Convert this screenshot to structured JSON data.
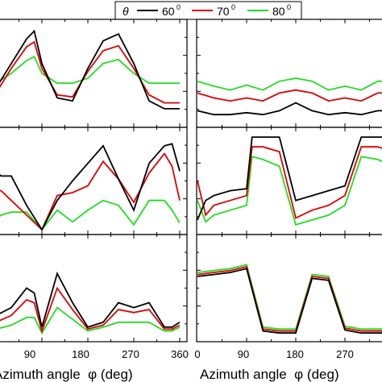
{
  "legend": {
    "symbol": "θ",
    "items": [
      {
        "label": "60",
        "sup": "0",
        "color": "#000000"
      },
      {
        "label": "70",
        "sup": "0",
        "color": "#dd0000"
      },
      {
        "label": "80",
        "sup": "0",
        "color": "#22dd22"
      }
    ]
  },
  "chart_data": [
    {
      "type": "line",
      "panel": "left-top",
      "xlim": [
        0,
        370
      ],
      "ylim": [
        0,
        1
      ],
      "series": [
        {
          "name": "60",
          "color": "#000000",
          "x": [
            0,
            30,
            60,
            75,
            90,
            120,
            150,
            180,
            210,
            240,
            270,
            300,
            330,
            360
          ],
          "y": [
            0.35,
            0.6,
            0.85,
            0.93,
            0.6,
            0.25,
            0.22,
            0.55,
            0.83,
            0.9,
            0.6,
            0.22,
            0.14,
            0.14
          ]
        },
        {
          "name": "70",
          "color": "#dd0000",
          "x": [
            0,
            30,
            60,
            75,
            90,
            120,
            150,
            180,
            210,
            240,
            270,
            300,
            330,
            360
          ],
          "y": [
            0.3,
            0.55,
            0.77,
            0.82,
            0.55,
            0.28,
            0.26,
            0.52,
            0.73,
            0.78,
            0.55,
            0.28,
            0.2,
            0.2
          ]
        },
        {
          "name": "80",
          "color": "#22dd22",
          "x": [
            0,
            30,
            60,
            75,
            90,
            120,
            150,
            180,
            210,
            240,
            270,
            300,
            330,
            360
          ],
          "y": [
            0.4,
            0.5,
            0.63,
            0.67,
            0.5,
            0.4,
            0.4,
            0.45,
            0.6,
            0.64,
            0.5,
            0.4,
            0.4,
            0.4
          ]
        }
      ]
    },
    {
      "type": "line",
      "panel": "right-top",
      "xlim": [
        0,
        370
      ],
      "ylim": [
        0,
        1
      ],
      "series": [
        {
          "name": "60",
          "color": "#000000",
          "x": [
            0,
            30,
            60,
            90,
            120,
            150,
            180,
            210,
            240,
            270,
            300,
            330,
            360
          ],
          "y": [
            0.12,
            0.08,
            0.08,
            0.1,
            0.08,
            0.12,
            0.2,
            0.12,
            0.08,
            0.1,
            0.08,
            0.12,
            0.12
          ]
        },
        {
          "name": "70",
          "color": "#dd0000",
          "x": [
            0,
            30,
            60,
            90,
            120,
            150,
            180,
            210,
            240,
            270,
            300,
            330,
            360
          ],
          "y": [
            0.3,
            0.25,
            0.22,
            0.25,
            0.22,
            0.3,
            0.33,
            0.3,
            0.22,
            0.25,
            0.22,
            0.3,
            0.3
          ]
        },
        {
          "name": "80",
          "color": "#22dd22",
          "x": [
            0,
            30,
            60,
            90,
            120,
            150,
            180,
            210,
            240,
            270,
            300,
            330,
            360
          ],
          "y": [
            0.42,
            0.37,
            0.33,
            0.38,
            0.33,
            0.42,
            0.45,
            0.42,
            0.33,
            0.37,
            0.33,
            0.42,
            0.42
          ]
        }
      ]
    },
    {
      "type": "line",
      "panel": "left-middle",
      "xlim": [
        0,
        370
      ],
      "ylim": [
        0,
        1
      ],
      "series": [
        {
          "name": "60",
          "color": "#000000",
          "x": [
            0,
            10,
            30,
            60,
            90,
            120,
            150,
            180,
            210,
            240,
            270,
            300,
            330,
            345,
            360
          ],
          "y": [
            0.6,
            0.55,
            0.55,
            0.25,
            0.0,
            0.3,
            0.5,
            0.68,
            0.86,
            0.52,
            0.2,
            0.68,
            0.86,
            0.88,
            0.6
          ]
        },
        {
          "name": "70",
          "color": "#dd0000",
          "x": [
            0,
            10,
            30,
            60,
            90,
            120,
            150,
            180,
            210,
            240,
            270,
            300,
            330,
            345,
            360
          ],
          "y": [
            0.4,
            0.4,
            0.3,
            0.15,
            0.0,
            0.35,
            0.38,
            0.45,
            0.7,
            0.52,
            0.28,
            0.58,
            0.78,
            0.65,
            0.3
          ]
        },
        {
          "name": "80",
          "color": "#22dd22",
          "x": [
            0,
            10,
            30,
            60,
            90,
            120,
            150,
            180,
            210,
            240,
            270,
            300,
            330,
            345,
            360
          ],
          "y": [
            0.1,
            0.15,
            0.18,
            0.18,
            0.0,
            0.2,
            0.08,
            0.2,
            0.3,
            0.25,
            0.05,
            0.3,
            0.3,
            0.2,
            0.07
          ]
        }
      ]
    },
    {
      "type": "line",
      "panel": "right-middle",
      "xlim": [
        0,
        370
      ],
      "ylim": [
        0,
        1
      ],
      "series": [
        {
          "name": "60",
          "color": "#000000",
          "x": [
            0,
            15,
            30,
            60,
            90,
            100,
            120,
            150,
            180,
            210,
            240,
            270,
            300,
            330,
            360
          ],
          "y": [
            0.1,
            0.3,
            0.35,
            0.4,
            0.42,
            0.95,
            0.95,
            0.95,
            0.3,
            0.35,
            0.4,
            0.45,
            0.95,
            0.95,
            0.95
          ]
        },
        {
          "name": "70",
          "color": "#dd0000",
          "x": [
            0,
            15,
            30,
            60,
            90,
            100,
            120,
            150,
            180,
            210,
            240,
            270,
            300,
            330,
            360
          ],
          "y": [
            0.5,
            0.15,
            0.25,
            0.3,
            0.35,
            0.85,
            0.85,
            0.8,
            0.12,
            0.2,
            0.25,
            0.35,
            0.85,
            0.85,
            0.8
          ]
        },
        {
          "name": "80",
          "color": "#22dd22",
          "x": [
            0,
            15,
            30,
            60,
            90,
            100,
            120,
            150,
            180,
            210,
            240,
            270,
            300,
            330,
            360
          ],
          "y": [
            0.3,
            0.08,
            0.15,
            0.2,
            0.25,
            0.75,
            0.72,
            0.65,
            0.05,
            0.1,
            0.15,
            0.25,
            0.75,
            0.72,
            0.65
          ]
        }
      ]
    },
    {
      "type": "line",
      "panel": "left-bottom",
      "xlim": [
        0,
        370
      ],
      "ylim": [
        0,
        1
      ],
      "series": [
        {
          "name": "60",
          "color": "#000000",
          "x": [
            0,
            30,
            60,
            75,
            90,
            120,
            150,
            180,
            210,
            240,
            270,
            300,
            330,
            345,
            360
          ],
          "y": [
            0.22,
            0.3,
            0.5,
            0.45,
            0.1,
            0.65,
            0.35,
            0.1,
            0.15,
            0.35,
            0.3,
            0.35,
            0.1,
            0.1,
            0.15
          ]
        },
        {
          "name": "70",
          "color": "#dd0000",
          "x": [
            0,
            30,
            60,
            75,
            90,
            120,
            150,
            180,
            210,
            240,
            270,
            300,
            330,
            345,
            360
          ],
          "y": [
            0.15,
            0.22,
            0.38,
            0.35,
            0.06,
            0.5,
            0.28,
            0.08,
            0.12,
            0.28,
            0.25,
            0.28,
            0.08,
            0.08,
            0.12
          ]
        },
        {
          "name": "80",
          "color": "#22dd22",
          "x": [
            0,
            30,
            60,
            75,
            90,
            120,
            150,
            180,
            210,
            240,
            270,
            300,
            330,
            345,
            360
          ],
          "y": [
            0.08,
            0.12,
            0.2,
            0.2,
            0.04,
            0.3,
            0.18,
            0.06,
            0.1,
            0.15,
            0.15,
            0.15,
            0.06,
            0.06,
            0.1
          ]
        }
      ]
    },
    {
      "type": "line",
      "panel": "right-bottom",
      "xlim": [
        0,
        370
      ],
      "ylim": [
        0,
        1
      ],
      "series": [
        {
          "name": "60",
          "color": "#000000",
          "x": [
            0,
            30,
            60,
            90,
            120,
            150,
            180,
            210,
            240,
            270,
            300,
            330,
            360
          ],
          "y": [
            0.62,
            0.64,
            0.66,
            0.7,
            0.06,
            0.04,
            0.04,
            0.6,
            0.58,
            0.07,
            0.04,
            0.04,
            0.04
          ]
        },
        {
          "name": "70",
          "color": "#dd0000",
          "x": [
            0,
            30,
            60,
            90,
            120,
            150,
            180,
            210,
            240,
            270,
            300,
            330,
            360
          ],
          "y": [
            0.64,
            0.66,
            0.68,
            0.72,
            0.08,
            0.06,
            0.06,
            0.62,
            0.6,
            0.09,
            0.06,
            0.06,
            0.06
          ]
        },
        {
          "name": "80",
          "color": "#22dd22",
          "x": [
            0,
            30,
            60,
            90,
            120,
            150,
            180,
            210,
            240,
            270,
            300,
            330,
            360
          ],
          "y": [
            0.66,
            0.68,
            0.7,
            0.74,
            0.1,
            0.08,
            0.08,
            0.64,
            0.62,
            0.11,
            0.08,
            0.08,
            0.08
          ]
        }
      ]
    }
  ],
  "left_x_axis": {
    "ticks": [
      "90",
      "180",
      "270",
      "360"
    ],
    "label": "Azimuth angle  φ (deg)"
  },
  "right_x_axis": {
    "ticks": [
      "0",
      "90",
      "180",
      "270"
    ],
    "label": "Azimuth angle  φ (deg)"
  }
}
